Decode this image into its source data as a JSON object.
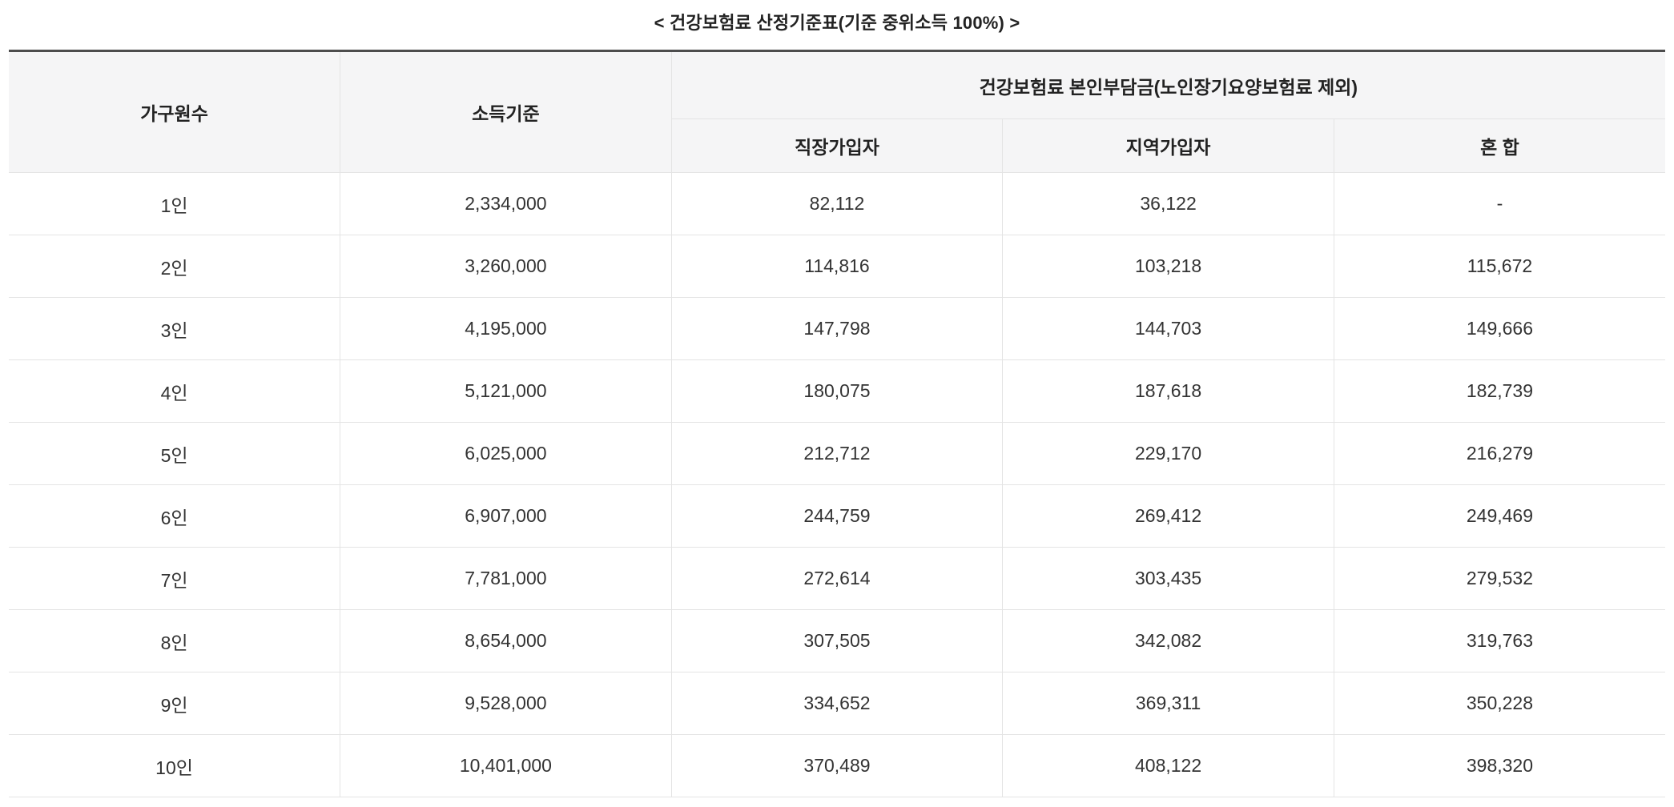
{
  "title": "< 건강보험료 산정기준표(기준 중위소득 100%) >",
  "table": {
    "col1_header": "가구원수",
    "col2_header": "소득기준",
    "group_header": "건강보험료 본인부담금(노인장기요양보험료 제외)",
    "sub_headers": [
      "직장가입자",
      "지역가입자",
      "혼 합"
    ],
    "rows": [
      {
        "household": "1인",
        "income": "2,334,000",
        "employee": "82,112",
        "local": "36,122",
        "mixed": "-"
      },
      {
        "household": "2인",
        "income": "3,260,000",
        "employee": "114,816",
        "local": "103,218",
        "mixed": "115,672"
      },
      {
        "household": "3인",
        "income": "4,195,000",
        "employee": "147,798",
        "local": "144,703",
        "mixed": "149,666"
      },
      {
        "household": "4인",
        "income": "5,121,000",
        "employee": "180,075",
        "local": "187,618",
        "mixed": "182,739"
      },
      {
        "household": "5인",
        "income": "6,025,000",
        "employee": "212,712",
        "local": "229,170",
        "mixed": "216,279"
      },
      {
        "household": "6인",
        "income": "6,907,000",
        "employee": "244,759",
        "local": "269,412",
        "mixed": "249,469"
      },
      {
        "household": "7인",
        "income": "7,781,000",
        "employee": "272,614",
        "local": "303,435",
        "mixed": "279,532"
      },
      {
        "household": "8인",
        "income": "8,654,000",
        "employee": "307,505",
        "local": "342,082",
        "mixed": "319,763"
      },
      {
        "household": "9인",
        "income": "9,528,000",
        "employee": "334,652",
        "local": "369,311",
        "mixed": "350,228"
      },
      {
        "household": "10인",
        "income": "10,401,000",
        "employee": "370,489",
        "local": "408,122",
        "mixed": "398,320"
      }
    ]
  }
}
